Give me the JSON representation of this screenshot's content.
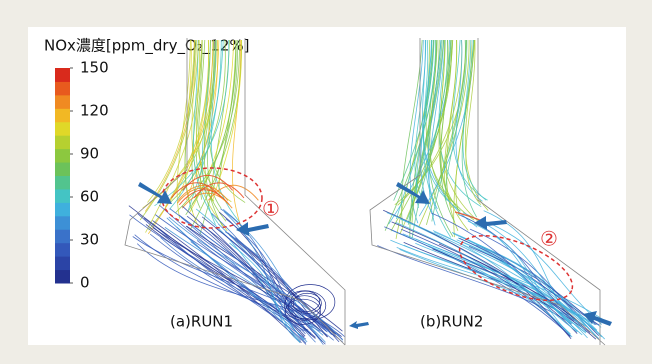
{
  "colorbar": {
    "title": "NOx濃度[ppm_dry_O₂_12%]",
    "range": [
      0,
      150
    ],
    "ticks": [
      0,
      30,
      60,
      90,
      120,
      150
    ]
  },
  "panels": [
    {
      "label": "(a)RUN1",
      "marker": "①"
    },
    {
      "label": "(b)RUN2",
      "marker": "②"
    }
  ]
}
